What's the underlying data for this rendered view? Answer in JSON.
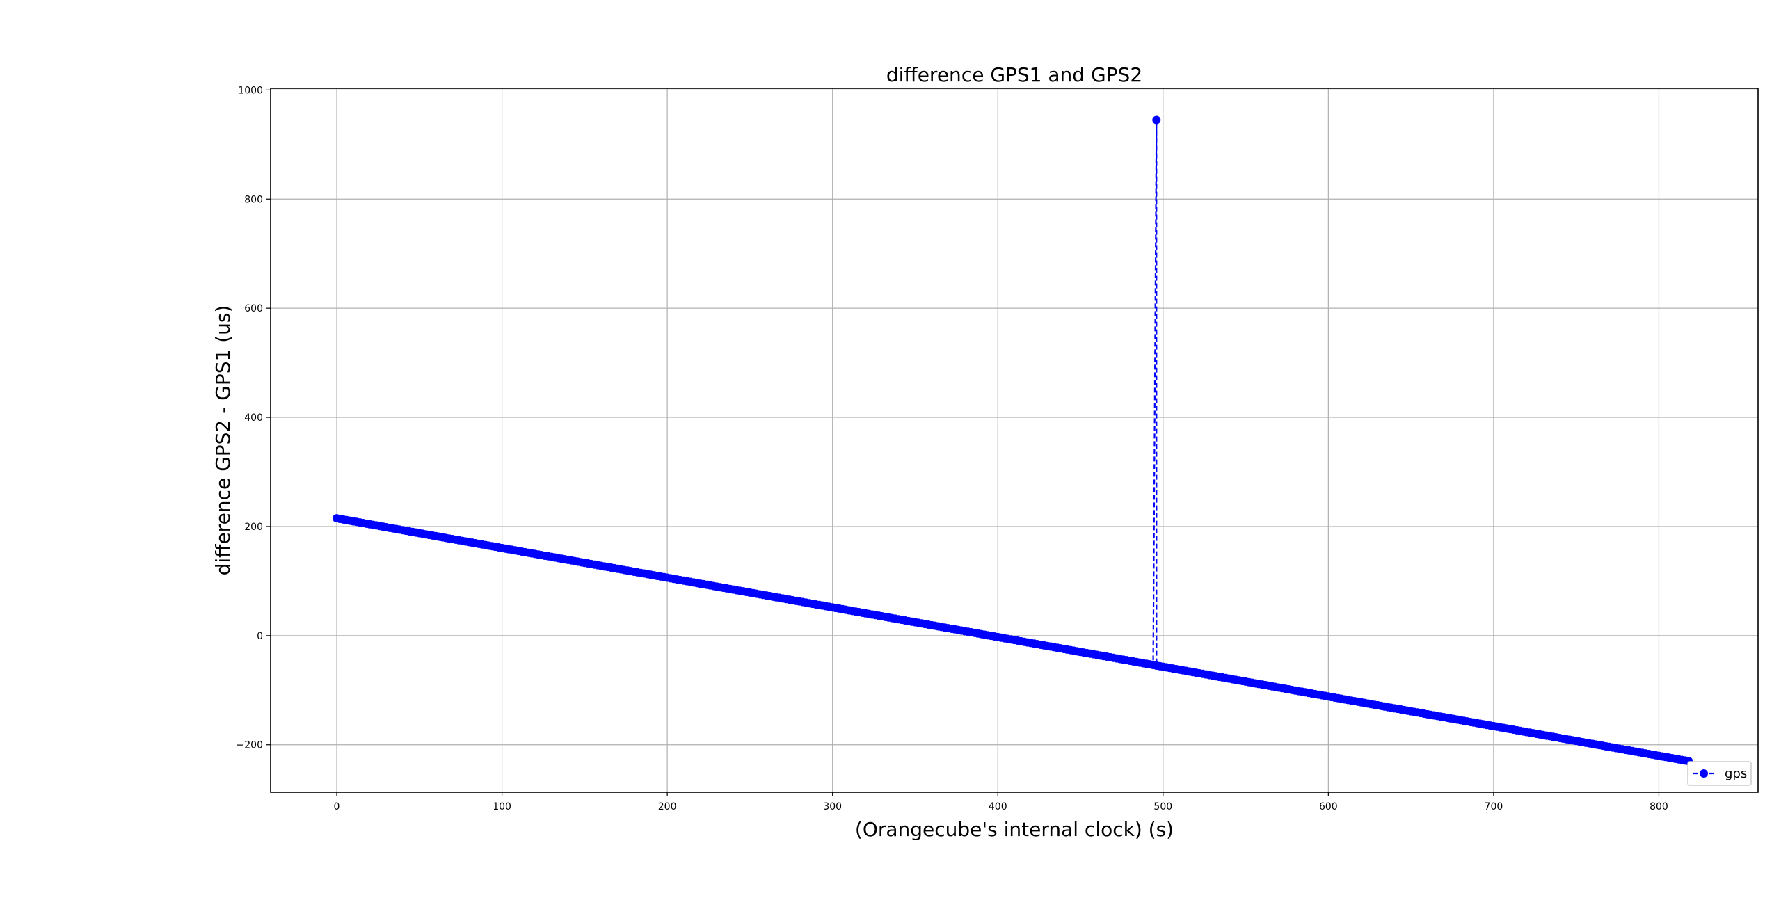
{
  "chart_data": {
    "type": "line",
    "title": "difference GPS1 and GPS2",
    "xlabel": "(Orangecube's internal clock) (s)",
    "ylabel": "difference GPS2 - GPS1 (us)",
    "xlim": [
      -40,
      860
    ],
    "ylim": [
      -287,
      1003
    ],
    "xticks": [
      0,
      100,
      200,
      300,
      400,
      500,
      600,
      700,
      800
    ],
    "yticks": [
      -200,
      0,
      200,
      400,
      600,
      800,
      1000
    ],
    "xtick_labels": [
      "0",
      "100",
      "200",
      "300",
      "400",
      "500",
      "600",
      "700",
      "800"
    ],
    "ytick_labels": [
      "−200",
      "0",
      "200",
      "400",
      "600",
      "800",
      "1000"
    ],
    "grid": true,
    "legend": {
      "position": "lower-right"
    },
    "series": [
      {
        "name": "gps",
        "color": "#0000ff",
        "linestyle": "dashed",
        "marker": "circle",
        "trend": {
          "x_start": 0,
          "y_start": 215,
          "x_end": 818,
          "y_end": -230,
          "sample_interval": 2
        },
        "outlier": {
          "x": 496,
          "y": 945
        }
      }
    ]
  }
}
